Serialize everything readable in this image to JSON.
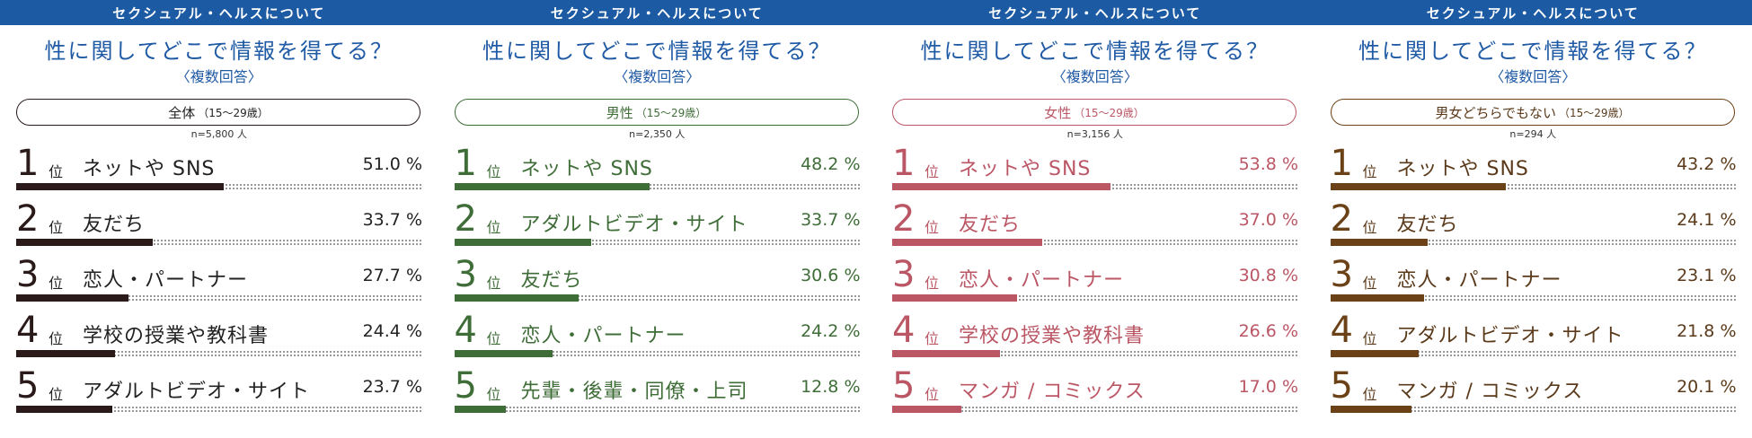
{
  "header": "セクシュアル・ヘルスについて",
  "title": "性に関してどこで情報を得てる？",
  "note": "〈複数回答〉",
  "rank_suffix": "位",
  "unit": "%",
  "panels": [
    {
      "group": "全体",
      "age_range": "（15〜29歳）",
      "n_label": "n=5,800 人",
      "color": "#2a1a1a",
      "label_color": "#222222"
    },
    {
      "group": "男性",
      "age_range": "（15〜29歳）",
      "n_label": "n=2,350 人",
      "color": "#3f6d38",
      "label_color": "#3f6d38"
    },
    {
      "group": "女性",
      "age_range": "（15〜29歳）",
      "n_label": "n=3,156 人",
      "color": "#bb5665",
      "label_color": "#bb5665"
    },
    {
      "group": "男女どちらでもない",
      "age_range": "（15〜29歳）",
      "n_label": "n=294 人",
      "color": "#6b4218",
      "label_color": "#5a3a1a"
    }
  ],
  "chart_data": [
    {
      "type": "bar",
      "title": "性に関してどこで情報を得てる？",
      "subtitle": "全体（15〜29歳）",
      "ranks": [
        "1",
        "2",
        "3",
        "4",
        "5"
      ],
      "categories": [
        "ネットや SNS",
        "友だち",
        "恋人・パートナー",
        "学校の授業や教科書",
        "アダルトビデオ・サイト"
      ],
      "values": [
        51.0,
        33.7,
        27.7,
        24.4,
        23.7
      ],
      "value_labels": [
        "51.0 %",
        "33.7 %",
        "27.7 %",
        "24.4 %",
        "23.7 %"
      ],
      "xlim": [
        0,
        100
      ]
    },
    {
      "type": "bar",
      "title": "性に関してどこで情報を得てる？",
      "subtitle": "男性（15〜29歳）",
      "ranks": [
        "1",
        "2",
        "3",
        "4",
        "5"
      ],
      "categories": [
        "ネットや SNS",
        "アダルトビデオ・サイト",
        "友だち",
        "恋人・パートナー",
        "先輩・後輩・同僚・上司"
      ],
      "values": [
        48.2,
        33.7,
        30.6,
        24.2,
        12.8
      ],
      "value_labels": [
        "48.2 %",
        "33.7 %",
        "30.6 %",
        "24.2 %",
        "12.8 %"
      ],
      "xlim": [
        0,
        100
      ]
    },
    {
      "type": "bar",
      "title": "性に関してどこで情報を得てる？",
      "subtitle": "女性（15〜29歳）",
      "ranks": [
        "1",
        "2",
        "3",
        "4",
        "5"
      ],
      "categories": [
        "ネットや SNS",
        "友だち",
        "恋人・パートナー",
        "学校の授業や教科書",
        "マンガ / コミックス"
      ],
      "values": [
        53.8,
        37.0,
        30.8,
        26.6,
        17.0
      ],
      "value_labels": [
        "53.8 %",
        "37.0 %",
        "30.8 %",
        "26.6 %",
        "17.0 %"
      ],
      "xlim": [
        0,
        100
      ]
    },
    {
      "type": "bar",
      "title": "性に関してどこで情報を得てる？",
      "subtitle": "男女どちらでもない（15〜29歳）",
      "ranks": [
        "1",
        "2",
        "3",
        "4",
        "5"
      ],
      "categories": [
        "ネットや SNS",
        "友だち",
        "恋人・パートナー",
        "アダルトビデオ・サイト",
        "マンガ / コミックス"
      ],
      "values": [
        43.2,
        24.1,
        23.1,
        21.8,
        20.1
      ],
      "value_labels": [
        "43.2 %",
        "24.1 %",
        "23.1 %",
        "21.8 %",
        "20.1 %"
      ],
      "xlim": [
        0,
        100
      ]
    }
  ]
}
